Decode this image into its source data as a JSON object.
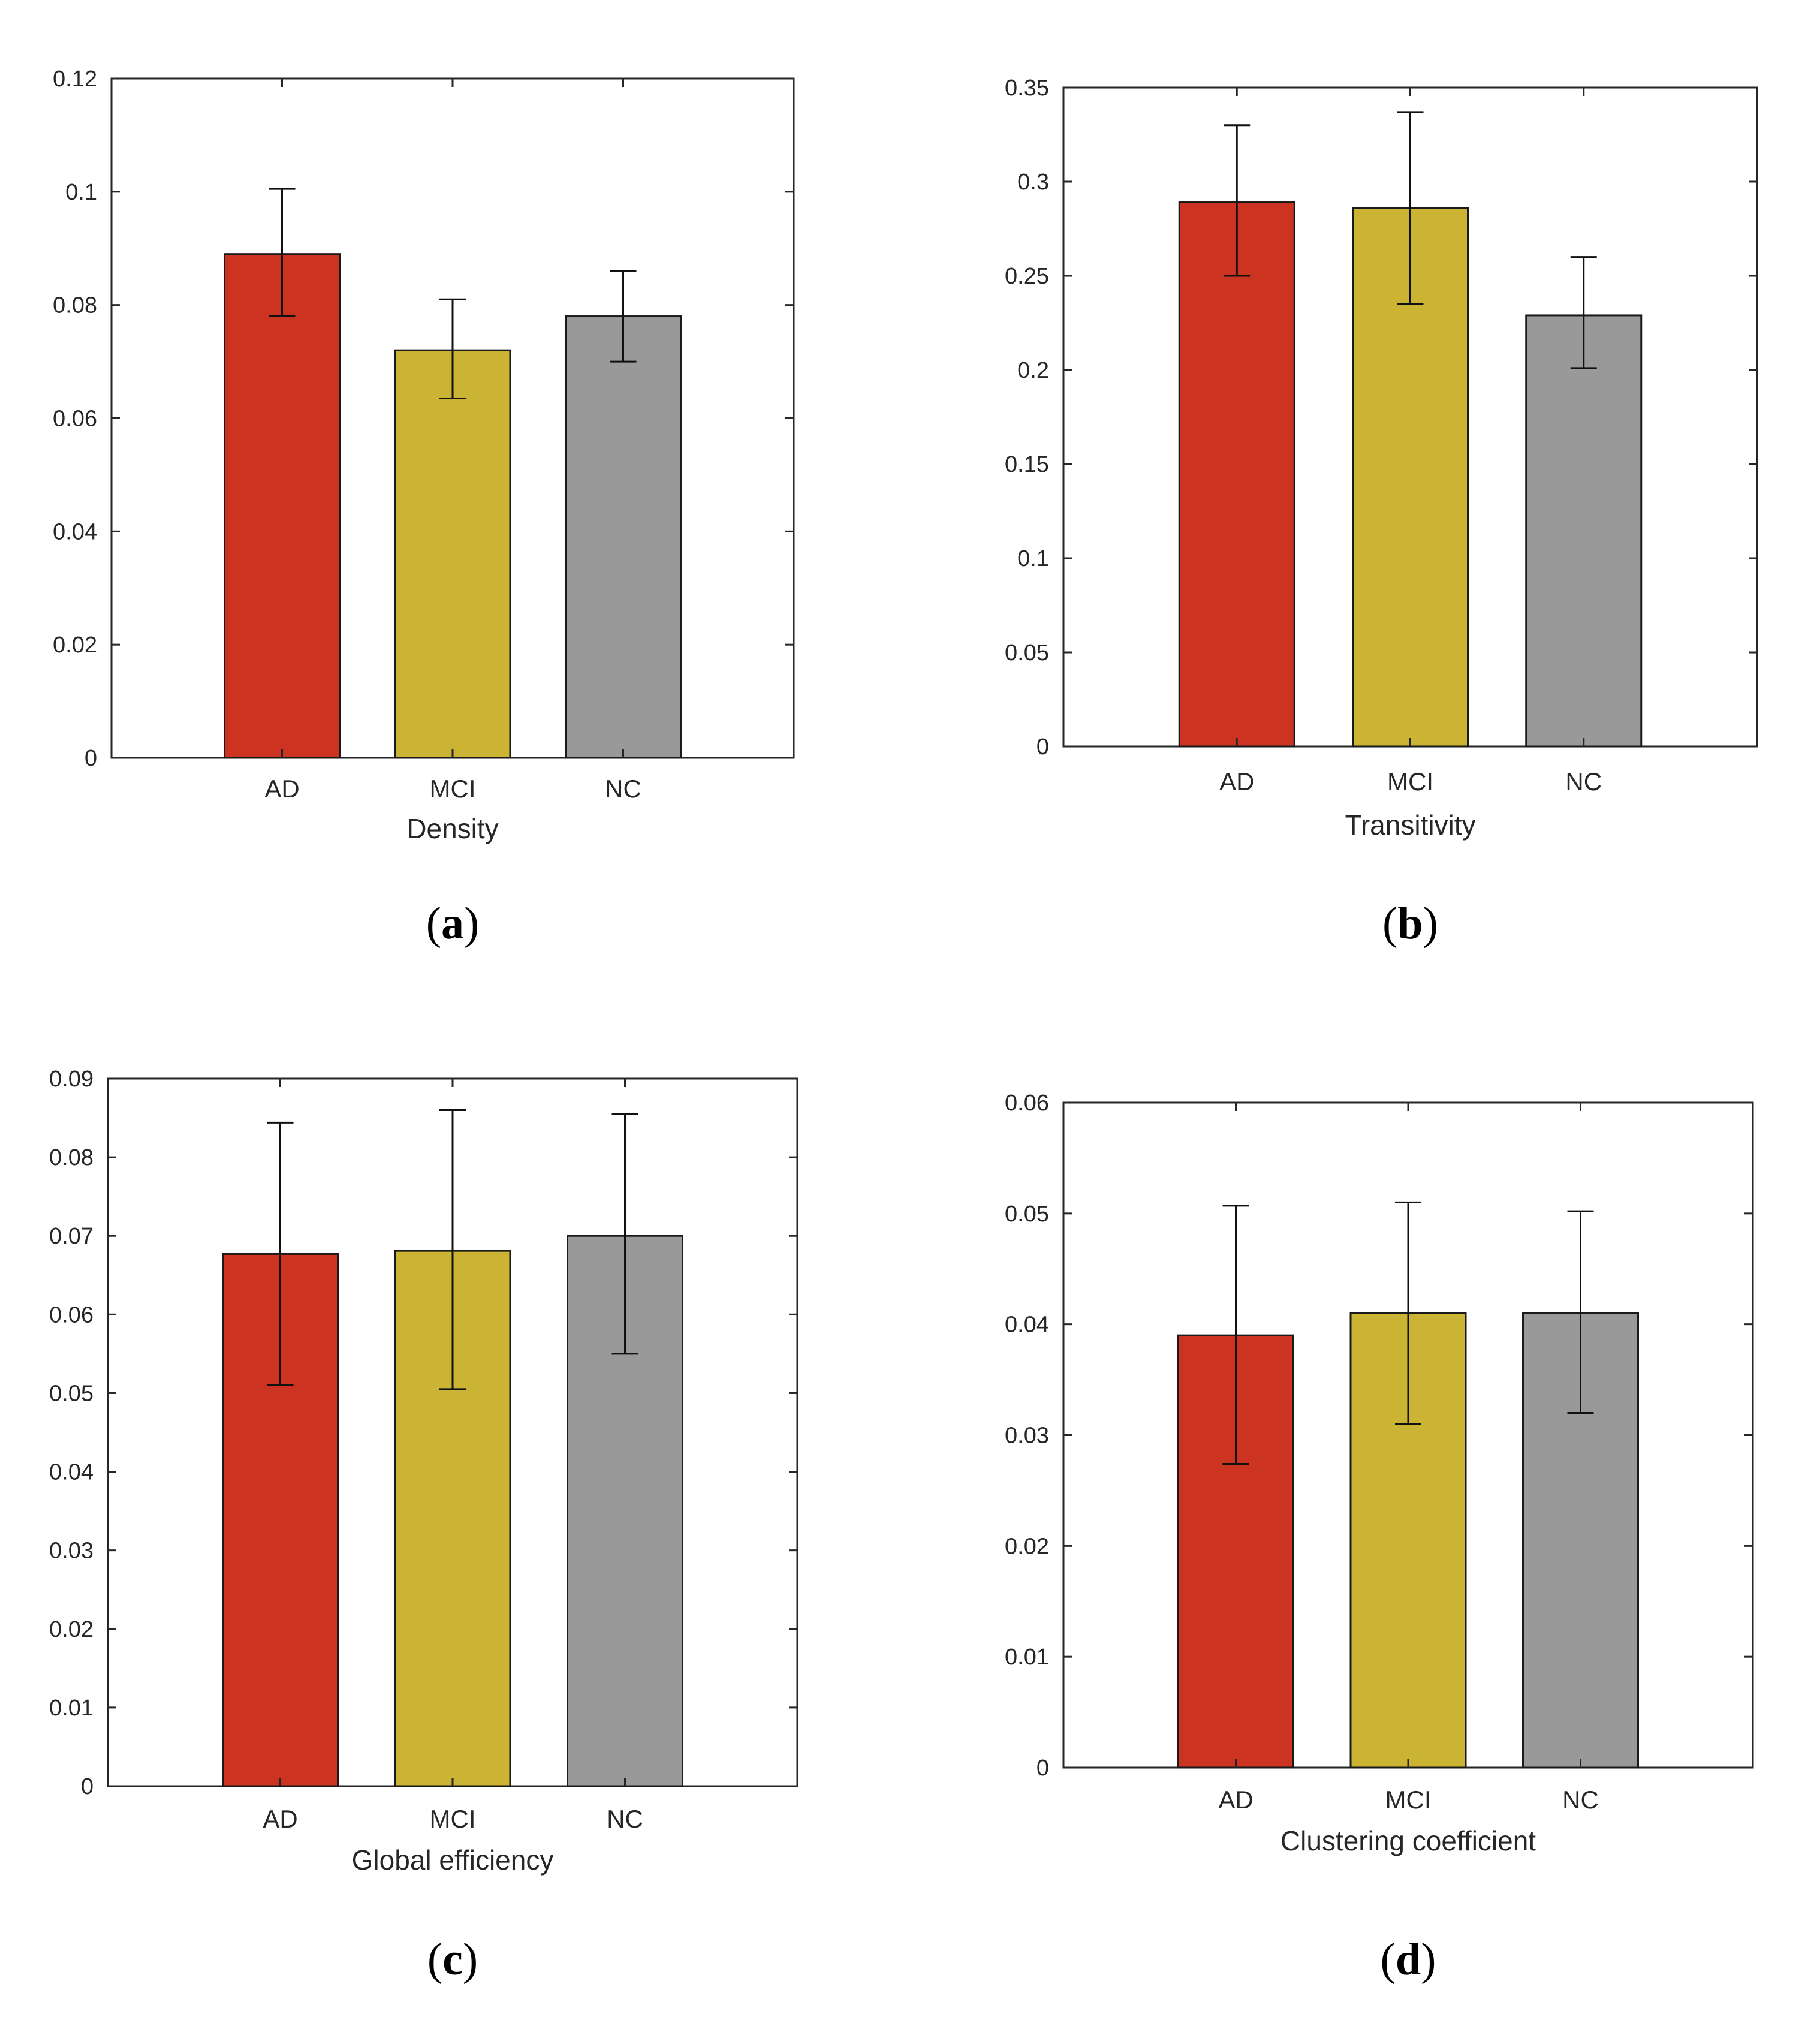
{
  "colors": {
    "AD": "#cc3320",
    "MCI": "#cbb334",
    "NC": "#999999"
  },
  "chart_data": [
    {
      "panel": "a",
      "type": "bar",
      "title": "",
      "xlabel": "Density",
      "ylabel": "",
      "categories": [
        "AD",
        "MCI",
        "NC"
      ],
      "values": [
        0.089,
        0.072,
        0.078
      ],
      "error_low": [
        0.078,
        0.0635,
        0.07
      ],
      "error_high": [
        0.1005,
        0.081,
        0.086
      ],
      "ylim": [
        0,
        0.12
      ],
      "yticks": [
        "0",
        "0.02",
        "0.04",
        "0.06",
        "0.08",
        "0.1",
        "0.12"
      ],
      "grid": false,
      "panel_label": {
        "open": "(",
        "letter": "a",
        "close": ")"
      }
    },
    {
      "panel": "b",
      "type": "bar",
      "title": "",
      "xlabel": "Transitivity",
      "ylabel": "",
      "categories": [
        "AD",
        "MCI",
        "NC"
      ],
      "values": [
        0.289,
        0.286,
        0.229
      ],
      "error_low": [
        0.25,
        0.235,
        0.201
      ],
      "error_high": [
        0.33,
        0.337,
        0.26
      ],
      "ylim": [
        0,
        0.35
      ],
      "yticks": [
        "0",
        "0.05",
        "0.1",
        "0.15",
        "0.2",
        "0.25",
        "0.3",
        "0.35"
      ],
      "grid": false,
      "panel_label": {
        "open": "(",
        "letter": "b",
        "close": ")"
      }
    },
    {
      "panel": "c",
      "type": "bar",
      "title": "",
      "xlabel": "Global efficiency",
      "ylabel": "",
      "categories": [
        "AD",
        "MCI",
        "NC"
      ],
      "values": [
        0.0677,
        0.0681,
        0.07
      ],
      "error_low": [
        0.051,
        0.0505,
        0.055
      ],
      "error_high": [
        0.0844,
        0.086,
        0.0855
      ],
      "ylim": [
        0,
        0.09
      ],
      "yticks": [
        "0",
        "0.01",
        "0.02",
        "0.03",
        "0.04",
        "0.05",
        "0.06",
        "0.07",
        "0.08",
        "0.09"
      ],
      "grid": false,
      "panel_label": {
        "open": "(",
        "letter": "c",
        "close": ")"
      }
    },
    {
      "panel": "d",
      "type": "bar",
      "title": "",
      "xlabel": "Clustering coefficient",
      "ylabel": "",
      "categories": [
        "AD",
        "MCI",
        "NC"
      ],
      "values": [
        0.039,
        0.041,
        0.041
      ],
      "error_low": [
        0.0274,
        0.031,
        0.032
      ],
      "error_high": [
        0.0507,
        0.051,
        0.0502
      ],
      "ylim": [
        0,
        0.06
      ],
      "yticks": [
        "0",
        "0.01",
        "0.02",
        "0.03",
        "0.04",
        "0.05",
        "0.06"
      ],
      "grid": false,
      "panel_label": {
        "open": "(",
        "letter": "d",
        "close": ")"
      }
    }
  ]
}
